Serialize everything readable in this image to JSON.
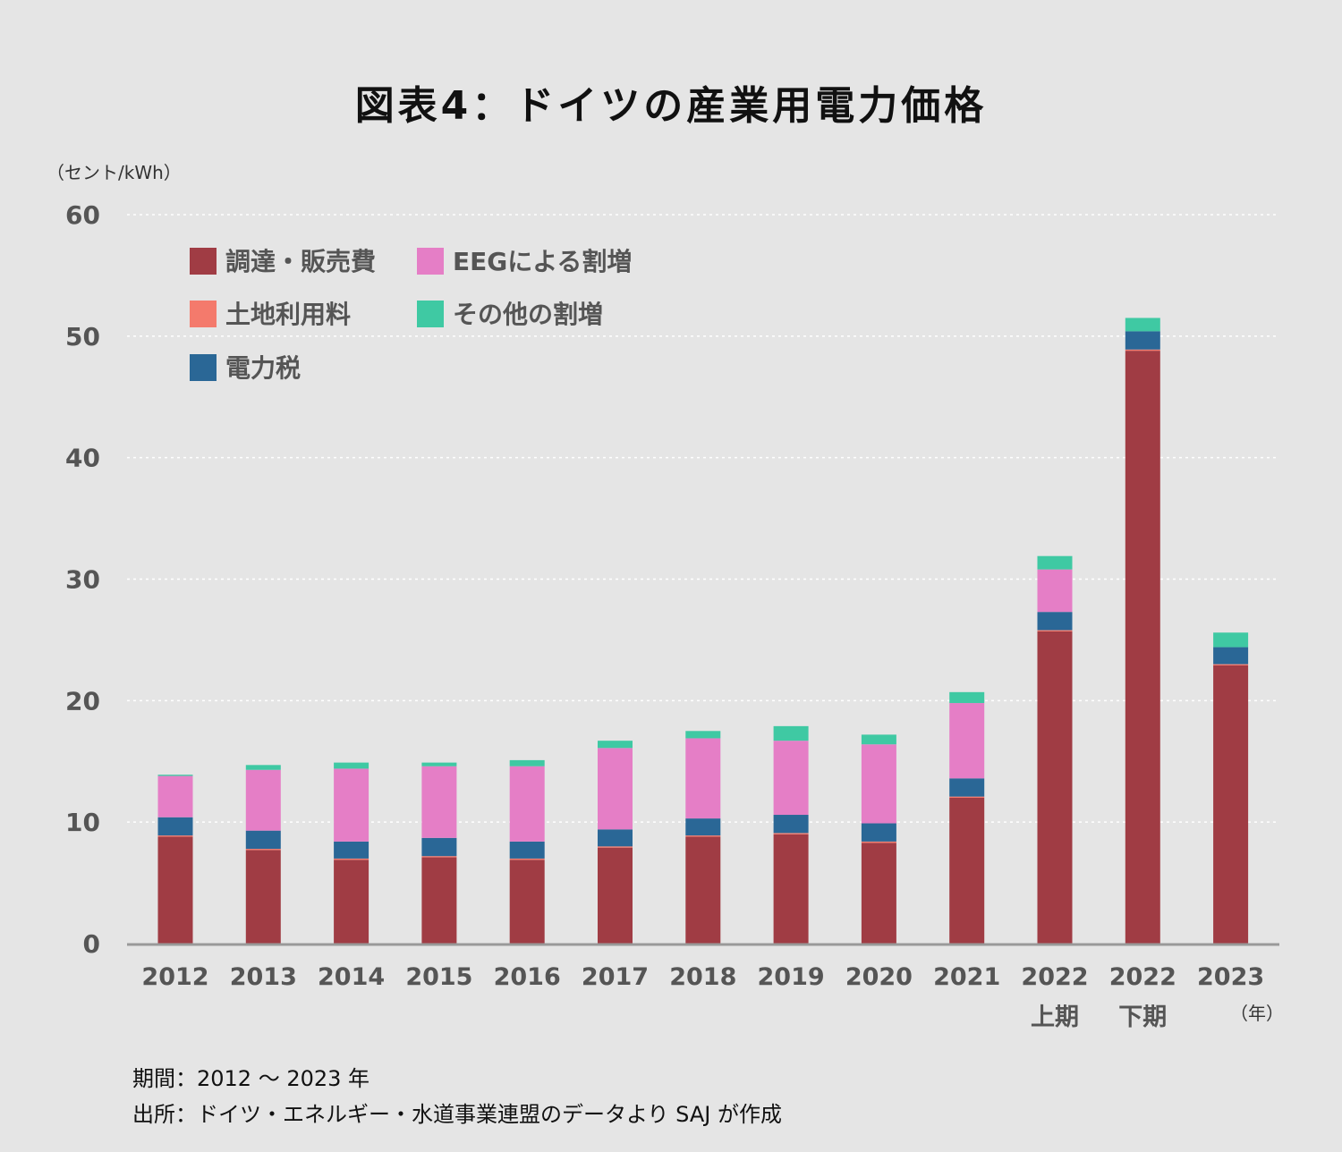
{
  "title": "図表4：ドイツの産業用電力価格",
  "chart_data": {
    "type": "bar",
    "stacked": true,
    "title": "図表4：ドイツの産業用電力価格",
    "ylabel": "（セント/kWh）",
    "xlabel": "（年）",
    "ylim": [
      0,
      60
    ],
    "yticks": [
      0,
      10,
      20,
      30,
      40,
      50,
      60
    ],
    "grid": true,
    "legend_position": "top-left",
    "categories": [
      {
        "year": "2012",
        "sub": ""
      },
      {
        "year": "2013",
        "sub": ""
      },
      {
        "year": "2014",
        "sub": ""
      },
      {
        "year": "2015",
        "sub": ""
      },
      {
        "year": "2016",
        "sub": ""
      },
      {
        "year": "2017",
        "sub": ""
      },
      {
        "year": "2018",
        "sub": ""
      },
      {
        "year": "2019",
        "sub": ""
      },
      {
        "year": "2020",
        "sub": ""
      },
      {
        "year": "2021",
        "sub": ""
      },
      {
        "year": "2022",
        "sub": "上期"
      },
      {
        "year": "2022",
        "sub": "下期"
      },
      {
        "year": "2023",
        "sub": ""
      }
    ],
    "series": [
      {
        "name": "調達・販売費",
        "color": "#a03c44",
        "values": [
          8.8,
          7.7,
          6.9,
          7.1,
          6.9,
          7.9,
          8.8,
          9.0,
          8.3,
          12.0,
          25.7,
          48.8,
          22.9
        ]
      },
      {
        "name": "土地利用料",
        "color": "#f47a6c",
        "values": [
          0.1,
          0.1,
          0.1,
          0.1,
          0.1,
          0.1,
          0.1,
          0.1,
          0.1,
          0.1,
          0.1,
          0.1,
          0.1
        ]
      },
      {
        "name": "電力税",
        "color": "#2a6796",
        "values": [
          1.5,
          1.5,
          1.4,
          1.5,
          1.4,
          1.4,
          1.4,
          1.5,
          1.5,
          1.5,
          1.5,
          1.5,
          1.4
        ]
      },
      {
        "name": "EEGによる割増",
        "color": "#e57ec6",
        "values": [
          3.4,
          5.0,
          6.0,
          5.9,
          6.2,
          6.7,
          6.6,
          6.1,
          6.5,
          6.2,
          3.5,
          0,
          0
        ]
      },
      {
        "name": "その他の割増",
        "color": "#3fc9a3",
        "values": [
          0.1,
          0.4,
          0.5,
          0.3,
          0.5,
          0.6,
          0.6,
          1.2,
          0.8,
          0.9,
          1.1,
          1.1,
          1.2
        ]
      }
    ]
  },
  "legend_order": [
    "調達・販売費",
    "EEGによる割増",
    "土地利用料",
    "その他の割増",
    "電力税"
  ],
  "notes": {
    "period": "期間：2012 ～ 2023 年",
    "source": "出所：ドイツ・エネルギー・水道事業連盟のデータより SAJ が作成"
  }
}
